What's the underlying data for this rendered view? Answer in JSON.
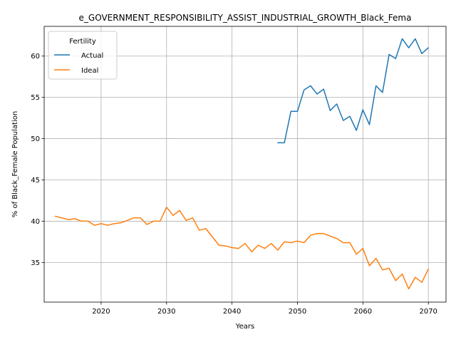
{
  "chart_data": {
    "type": "line",
    "title": "e_GOVERNMENT_RESPONSIBILITY_ASSIST_INDUSTRIAL_GROWTH_Black_Fema",
    "xlabel": "Years",
    "ylabel": "% of Black_Female Population",
    "xlim": [
      2011.3,
      2072.7
    ],
    "ylim": [
      30.2,
      63.6
    ],
    "xticks": [
      2020,
      2030,
      2040,
      2050,
      2060,
      2070
    ],
    "yticks": [
      35,
      40,
      45,
      50,
      55,
      60
    ],
    "grid": true,
    "legend": {
      "title": "Fertility",
      "placement": "top-left"
    },
    "series": [
      {
        "name": "Actual",
        "color": "#1f77b4",
        "x": [
          2047,
          2048,
          2049,
          2050,
          2051,
          2052,
          2053,
          2054,
          2055,
          2056,
          2057,
          2058,
          2059,
          2060,
          2061,
          2062,
          2063,
          2064,
          2065,
          2066,
          2067,
          2068,
          2069,
          2070
        ],
        "y": [
          49.5,
          49.5,
          53.3,
          53.3,
          55.9,
          56.4,
          55.4,
          56.0,
          53.4,
          54.2,
          52.2,
          52.7,
          51.0,
          53.5,
          51.7,
          56.4,
          55.6,
          60.2,
          59.7,
          62.1,
          61.0,
          62.1,
          60.3,
          61.0
        ]
      },
      {
        "name": "Ideal",
        "color": "#ff7f0e",
        "x": [
          2013,
          2014,
          2015,
          2016,
          2017,
          2018,
          2019,
          2020,
          2021,
          2022,
          2023,
          2024,
          2025,
          2026,
          2027,
          2028,
          2029,
          2030,
          2031,
          2032,
          2033,
          2034,
          2035,
          2036,
          2037,
          2038,
          2039,
          2040,
          2041,
          2042,
          2043,
          2044,
          2045,
          2046,
          2047,
          2048,
          2049,
          2050,
          2051,
          2052,
          2053,
          2054,
          2055,
          2056,
          2057,
          2058,
          2059,
          2060,
          2061,
          2062,
          2063,
          2064,
          2065,
          2066,
          2067,
          2068,
          2069,
          2070
        ],
        "y": [
          40.6,
          40.4,
          40.2,
          40.3,
          40.0,
          40.0,
          39.5,
          39.7,
          39.5,
          39.7,
          39.8,
          40.1,
          40.4,
          40.4,
          39.6,
          40.0,
          40.0,
          41.7,
          40.7,
          41.3,
          40.1,
          40.4,
          38.9,
          39.1,
          38.1,
          37.1,
          37.0,
          36.8,
          36.7,
          37.3,
          36.3,
          37.1,
          36.7,
          37.3,
          36.5,
          37.5,
          37.4,
          37.6,
          37.4,
          38.3,
          38.5,
          38.5,
          38.2,
          37.9,
          37.4,
          37.4,
          36.0,
          36.7,
          34.6,
          35.5,
          34.1,
          34.3,
          32.8,
          33.6,
          31.8,
          33.2,
          32.6,
          34.2
        ]
      }
    ]
  }
}
